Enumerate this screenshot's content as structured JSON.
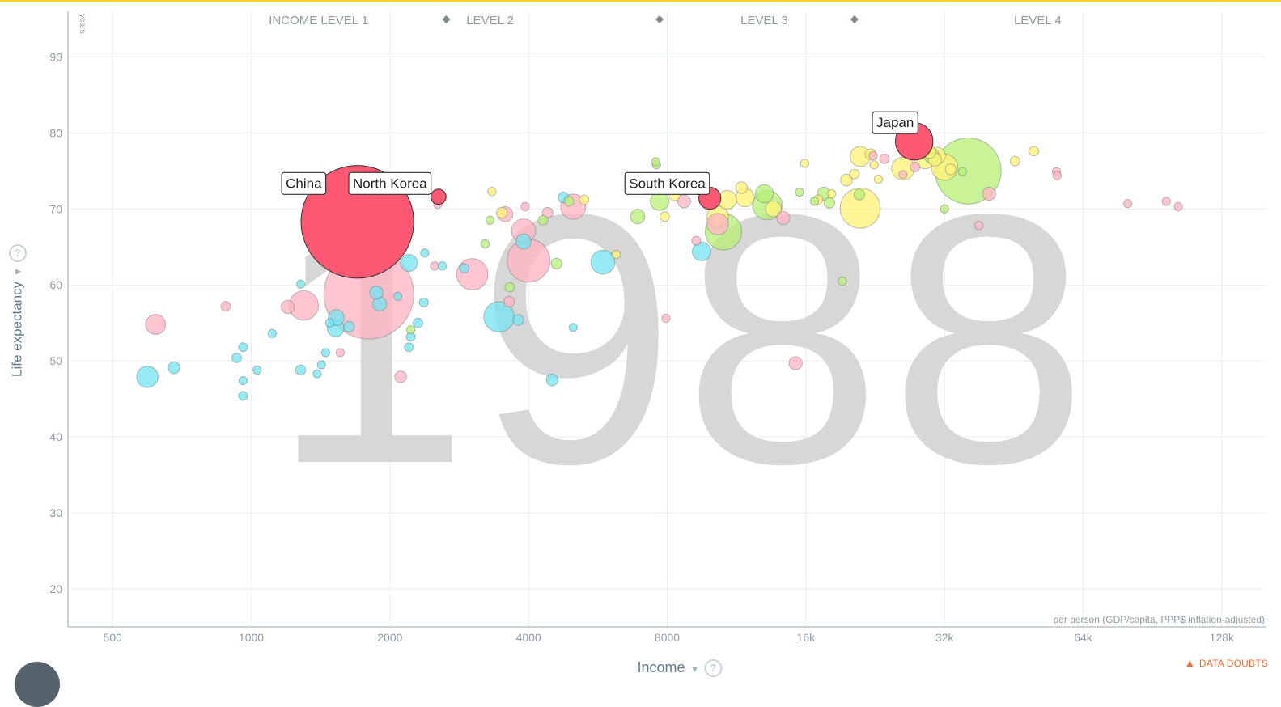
{
  "chart_data": {
    "type": "scatter",
    "year": "1988",
    "xlabel": "Income",
    "ylabel": "Life expectancy",
    "y_unit": "years",
    "x_unit_note": "per person (GDP/capita, PPP$ inflation-adjusted)",
    "x_scale": "log2",
    "xlim": [
      400,
      160000
    ],
    "ylim": [
      15,
      96
    ],
    "x_ticks": [
      500,
      1000,
      2000,
      4000,
      8000,
      16000,
      32000,
      64000,
      128000
    ],
    "x_tick_labels": [
      "500",
      "1000",
      "2000",
      "4000",
      "8000",
      "16k",
      "32k",
      "64k",
      "128k"
    ],
    "y_ticks": [
      20,
      30,
      40,
      50,
      60,
      70,
      80,
      90
    ],
    "y_tick_labels": [
      "20",
      "30",
      "40",
      "50",
      "60",
      "70",
      "80",
      "90"
    ],
    "income_levels": [
      {
        "label": "INCOME LEVEL 1",
        "x": 1400
      },
      {
        "label": "LEVEL 2",
        "x": 3300
      },
      {
        "label": "LEVEL 3",
        "x": 13000
      },
      {
        "label": "LEVEL 4",
        "x": 51000
      }
    ],
    "income_level_dividers": [
      2650,
      7700,
      20400
    ],
    "grid": true,
    "highlighted": [
      {
        "name": "China",
        "x": 1700,
        "y": 68.3,
        "size": 1100,
        "color": "#ff5872"
      },
      {
        "name": "North Korea",
        "x": 2550,
        "y": 71.6,
        "size": 20,
        "color": "#ff5872"
      },
      {
        "name": "South Korea",
        "x": 9900,
        "y": 71.4,
        "size": 42,
        "color": "#ff5872"
      },
      {
        "name": "Japan",
        "x": 27500,
        "y": 78.9,
        "size": 122,
        "color": "#ff5872"
      }
    ],
    "label_positions": {
      "China": {
        "x": 1300,
        "y": 73.4
      },
      "North Korea": {
        "x": 2000,
        "y": 73.4
      },
      "South Korea": {
        "x": 8000,
        "y": 73.4
      },
      "Japan": {
        "x": 25000,
        "y": 81.4
      }
    },
    "others": [
      {
        "x": 1800,
        "y": 58.8,
        "size": 700,
        "c": "pink"
      },
      {
        "x": 4000,
        "y": 63.2,
        "size": 160,
        "c": "pink"
      },
      {
        "x": 3450,
        "y": 55.8,
        "size": 80,
        "c": "cyan"
      },
      {
        "x": 3020,
        "y": 61.4,
        "size": 85,
        "c": "pink"
      },
      {
        "x": 3900,
        "y": 67.1,
        "size": 50,
        "c": "pink"
      },
      {
        "x": 1300,
        "y": 57.3,
        "size": 75,
        "c": "pink"
      },
      {
        "x": 1460,
        "y": 68.3,
        "size": 50,
        "c": "pink"
      },
      {
        "x": 5800,
        "y": 63.0,
        "size": 50,
        "c": "cyan"
      },
      {
        "x": 5000,
        "y": 70.3,
        "size": 55,
        "c": "pink"
      },
      {
        "x": 36000,
        "y": 75.0,
        "size": 380,
        "c": "green"
      },
      {
        "x": 21000,
        "y": 70.1,
        "size": 140,
        "c": "yellow"
      },
      {
        "x": 10600,
        "y": 67.0,
        "size": 115,
        "c": "green"
      },
      {
        "x": 13200,
        "y": 70.5,
        "size": 75,
        "c": "green"
      },
      {
        "x": 10300,
        "y": 69.0,
        "size": 40,
        "c": "yellow"
      },
      {
        "x": 10300,
        "y": 68.0,
        "size": 40,
        "c": "pink"
      },
      {
        "x": 26000,
        "y": 75.3,
        "size": 45,
        "c": "yellow"
      },
      {
        "x": 32000,
        "y": 75.5,
        "size": 60,
        "c": "yellow"
      },
      {
        "x": 29000,
        "y": 76.7,
        "size": 40,
        "c": "yellow"
      },
      {
        "x": 21000,
        "y": 76.9,
        "size": 35,
        "c": "yellow"
      },
      {
        "x": 11800,
        "y": 71.5,
        "size": 30,
        "c": "yellow"
      },
      {
        "x": 13000,
        "y": 72.0,
        "size": 28,
        "c": "green"
      },
      {
        "x": 13600,
        "y": 70.0,
        "size": 22,
        "c": "yellow"
      },
      {
        "x": 14300,
        "y": 68.8,
        "size": 15,
        "c": "pink"
      },
      {
        "x": 15200,
        "y": 49.7,
        "size": 15,
        "c": "pink"
      },
      {
        "x": 9500,
        "y": 64.4,
        "size": 30,
        "c": "cyan"
      },
      {
        "x": 10800,
        "y": 71.2,
        "size": 30,
        "c": "yellow"
      },
      {
        "x": 7700,
        "y": 71.0,
        "size": 30,
        "c": "green"
      },
      {
        "x": 6900,
        "y": 69.0,
        "size": 18,
        "c": "green"
      },
      {
        "x": 8700,
        "y": 71.0,
        "size": 15,
        "c": "pink"
      },
      {
        "x": 17500,
        "y": 72.0,
        "size": 15,
        "c": "green"
      },
      {
        "x": 18000,
        "y": 70.8,
        "size": 10,
        "c": "green"
      },
      {
        "x": 30000,
        "y": 77.0,
        "size": 20,
        "c": "green"
      },
      {
        "x": 30500,
        "y": 76.5,
        "size": 15,
        "c": "yellow"
      },
      {
        "x": 29600,
        "y": 77.5,
        "size": 15,
        "c": "yellow"
      },
      {
        "x": 33000,
        "y": 75.2,
        "size": 10,
        "c": "yellow"
      },
      {
        "x": 40000,
        "y": 72.0,
        "size": 15,
        "c": "pink"
      },
      {
        "x": 2200,
        "y": 62.9,
        "size": 25,
        "c": "cyan"
      },
      {
        "x": 3900,
        "y": 65.7,
        "size": 20,
        "c": "cyan"
      },
      {
        "x": 3560,
        "y": 69.3,
        "size": 20,
        "c": "pink"
      },
      {
        "x": 1900,
        "y": 57.5,
        "size": 17,
        "c": "cyan"
      },
      {
        "x": 1870,
        "y": 59.0,
        "size": 15,
        "c": "cyan"
      },
      {
        "x": 1530,
        "y": 55.7,
        "size": 22,
        "c": "cyan"
      },
      {
        "x": 1525,
        "y": 54.3,
        "size": 25,
        "c": "cyan"
      },
      {
        "x": 620,
        "y": 54.8,
        "size": 35,
        "c": "pink"
      },
      {
        "x": 595,
        "y": 47.9,
        "size": 40,
        "c": "cyan"
      },
      {
        "x": 4500,
        "y": 47.5,
        "size": 12,
        "c": "cyan"
      },
      {
        "x": 2110,
        "y": 47.9,
        "size": 12,
        "c": "pink"
      },
      {
        "x": 3800,
        "y": 55.4,
        "size": 10,
        "c": "cyan"
      },
      {
        "x": 680,
        "y": 49.1,
        "size": 12,
        "c": "cyan"
      },
      {
        "x": 1280,
        "y": 48.8,
        "size": 9,
        "c": "cyan"
      },
      {
        "x": 2300,
        "y": 55.0,
        "size": 8,
        "c": "cyan"
      },
      {
        "x": 2200,
        "y": 51.8,
        "size": 7,
        "c": "cyan"
      },
      {
        "x": 2220,
        "y": 53.2,
        "size": 7,
        "c": "cyan"
      },
      {
        "x": 2370,
        "y": 57.7,
        "size": 7,
        "c": "cyan"
      },
      {
        "x": 1630,
        "y": 54.5,
        "size": 10,
        "c": "cyan"
      },
      {
        "x": 2500,
        "y": 62.5,
        "size": 6,
        "c": "pink"
      },
      {
        "x": 2220,
        "y": 54.1,
        "size": 6,
        "c": "green"
      },
      {
        "x": 3220,
        "y": 65.4,
        "size": 6,
        "c": "green"
      },
      {
        "x": 3300,
        "y": 68.5,
        "size": 6,
        "c": "green"
      },
      {
        "x": 3330,
        "y": 72.3,
        "size": 6,
        "c": "yellow"
      },
      {
        "x": 3640,
        "y": 59.7,
        "size": 8,
        "c": "green"
      },
      {
        "x": 3630,
        "y": 57.8,
        "size": 10,
        "c": "pink"
      },
      {
        "x": 4760,
        "y": 71.5,
        "size": 10,
        "c": "cyan"
      },
      {
        "x": 4600,
        "y": 62.8,
        "size": 10,
        "c": "green"
      },
      {
        "x": 4300,
        "y": 68.5,
        "size": 8,
        "c": "green"
      },
      {
        "x": 4400,
        "y": 69.5,
        "size": 10,
        "c": "pink"
      },
      {
        "x": 960,
        "y": 51.8,
        "size": 7,
        "c": "cyan"
      },
      {
        "x": 930,
        "y": 50.4,
        "size": 8,
        "c": "cyan"
      },
      {
        "x": 960,
        "y": 47.4,
        "size": 6,
        "c": "cyan"
      },
      {
        "x": 960,
        "y": 45.4,
        "size": 7,
        "c": "cyan"
      },
      {
        "x": 1030,
        "y": 48.8,
        "size": 6,
        "c": "cyan"
      },
      {
        "x": 1110,
        "y": 53.6,
        "size": 6,
        "c": "cyan"
      },
      {
        "x": 880,
        "y": 57.2,
        "size": 8,
        "c": "pink"
      },
      {
        "x": 1200,
        "y": 57.1,
        "size": 15,
        "c": "pink"
      },
      {
        "x": 1280,
        "y": 60.1,
        "size": 6,
        "c": "cyan"
      },
      {
        "x": 1420,
        "y": 49.5,
        "size": 6,
        "c": "cyan"
      },
      {
        "x": 1450,
        "y": 51.1,
        "size": 6,
        "c": "cyan"
      },
      {
        "x": 1390,
        "y": 48.3,
        "size": 6,
        "c": "cyan"
      },
      {
        "x": 1480,
        "y": 55.0,
        "size": 6,
        "c": "cyan"
      },
      {
        "x": 1560,
        "y": 51.1,
        "size": 6,
        "c": "pink"
      },
      {
        "x": 2080,
        "y": 58.5,
        "size": 6,
        "c": "cyan"
      },
      {
        "x": 2380,
        "y": 64.2,
        "size": 6,
        "c": "cyan"
      },
      {
        "x": 2540,
        "y": 70.6,
        "size": 6,
        "c": "pink"
      },
      {
        "x": 2600,
        "y": 62.5,
        "size": 6,
        "c": "cyan"
      },
      {
        "x": 2900,
        "y": 62.2,
        "size": 8,
        "c": "cyan"
      },
      {
        "x": 3500,
        "y": 69.5,
        "size": 10,
        "c": "yellow"
      },
      {
        "x": 3930,
        "y": 70.3,
        "size": 6,
        "c": "pink"
      },
      {
        "x": 4900,
        "y": 71.0,
        "size": 8,
        "c": "green"
      },
      {
        "x": 5280,
        "y": 71.2,
        "size": 8,
        "c": "yellow"
      },
      {
        "x": 5000,
        "y": 54.4,
        "size": 6,
        "c": "cyan"
      },
      {
        "x": 6200,
        "y": 64.0,
        "size": 6,
        "c": "yellow"
      },
      {
        "x": 7580,
        "y": 75.8,
        "size": 6,
        "c": "green"
      },
      {
        "x": 7560,
        "y": 76.2,
        "size": 6,
        "c": "green"
      },
      {
        "x": 8300,
        "y": 71.8,
        "size": 10,
        "c": "yellow"
      },
      {
        "x": 7900,
        "y": 69.0,
        "size": 8,
        "c": "yellow"
      },
      {
        "x": 7950,
        "y": 55.6,
        "size": 6,
        "c": "pink"
      },
      {
        "x": 9250,
        "y": 65.8,
        "size": 7,
        "c": "pink"
      },
      {
        "x": 11600,
        "y": 72.8,
        "size": 12,
        "c": "yellow"
      },
      {
        "x": 15900,
        "y": 76.0,
        "size": 6,
        "c": "yellow"
      },
      {
        "x": 16700,
        "y": 71.0,
        "size": 6,
        "c": "green"
      },
      {
        "x": 17000,
        "y": 71.2,
        "size": 8,
        "c": "yellow"
      },
      {
        "x": 18200,
        "y": 72.0,
        "size": 6,
        "c": "yellow"
      },
      {
        "x": 19600,
        "y": 73.8,
        "size": 12,
        "c": "yellow"
      },
      {
        "x": 20400,
        "y": 74.6,
        "size": 8,
        "c": "yellow"
      },
      {
        "x": 22100,
        "y": 77.2,
        "size": 10,
        "c": "yellow"
      },
      {
        "x": 23700,
        "y": 76.6,
        "size": 8,
        "c": "pink"
      },
      {
        "x": 22500,
        "y": 75.8,
        "size": 6,
        "c": "yellow"
      },
      {
        "x": 19200,
        "y": 60.5,
        "size": 6,
        "c": "green"
      },
      {
        "x": 23000,
        "y": 73.9,
        "size": 6,
        "c": "yellow"
      },
      {
        "x": 26000,
        "y": 74.5,
        "size": 6,
        "c": "pink"
      },
      {
        "x": 27600,
        "y": 75.5,
        "size": 8,
        "c": "pink"
      },
      {
        "x": 32000,
        "y": 70.0,
        "size": 6,
        "c": "green"
      },
      {
        "x": 35000,
        "y": 74.9,
        "size": 6,
        "c": "green"
      },
      {
        "x": 38000,
        "y": 67.8,
        "size": 6,
        "c": "pink"
      },
      {
        "x": 45500,
        "y": 76.3,
        "size": 8,
        "c": "yellow"
      },
      {
        "x": 50000,
        "y": 77.6,
        "size": 8,
        "c": "yellow"
      },
      {
        "x": 56000,
        "y": 74.9,
        "size": 6,
        "c": "pink"
      },
      {
        "x": 56200,
        "y": 74.4,
        "size": 6,
        "c": "pink"
      },
      {
        "x": 80000,
        "y": 70.7,
        "size": 6,
        "c": "pink"
      },
      {
        "x": 97000,
        "y": 71.0,
        "size": 6,
        "c": "pink"
      },
      {
        "x": 103000,
        "y": 70.3,
        "size": 6,
        "c": "pink"
      },
      {
        "x": 20900,
        "y": 71.9,
        "size": 10,
        "c": "green"
      },
      {
        "x": 15500,
        "y": 72.2,
        "size": 6,
        "c": "green"
      },
      {
        "x": 26400,
        "y": 78.5,
        "size": 10,
        "c": "yellow"
      },
      {
        "x": 30800,
        "y": 77.0,
        "size": 25,
        "c": "yellow"
      },
      {
        "x": 22400,
        "y": 77.0,
        "size": 6,
        "c": "pink"
      }
    ]
  },
  "colors": {
    "pink": "#ffb6c4",
    "cyan": "#77e4f0",
    "yellow": "#fff27a",
    "green": "#b8f07a",
    "highlight": "#ff5872",
    "grid": "#e6eef0",
    "tick_text": "#8f9aa0",
    "year_text": "#d7d7d7",
    "level_text": "#8f9aa0",
    "doubts": "#f06a36"
  },
  "ui": {
    "ylabel": "Life expectancy",
    "xlabel": "Income",
    "help_glyph": "?",
    "arrow_glyph": "▼",
    "data_doubts": "DATA DOUBTS",
    "warn_glyph": "▲"
  }
}
